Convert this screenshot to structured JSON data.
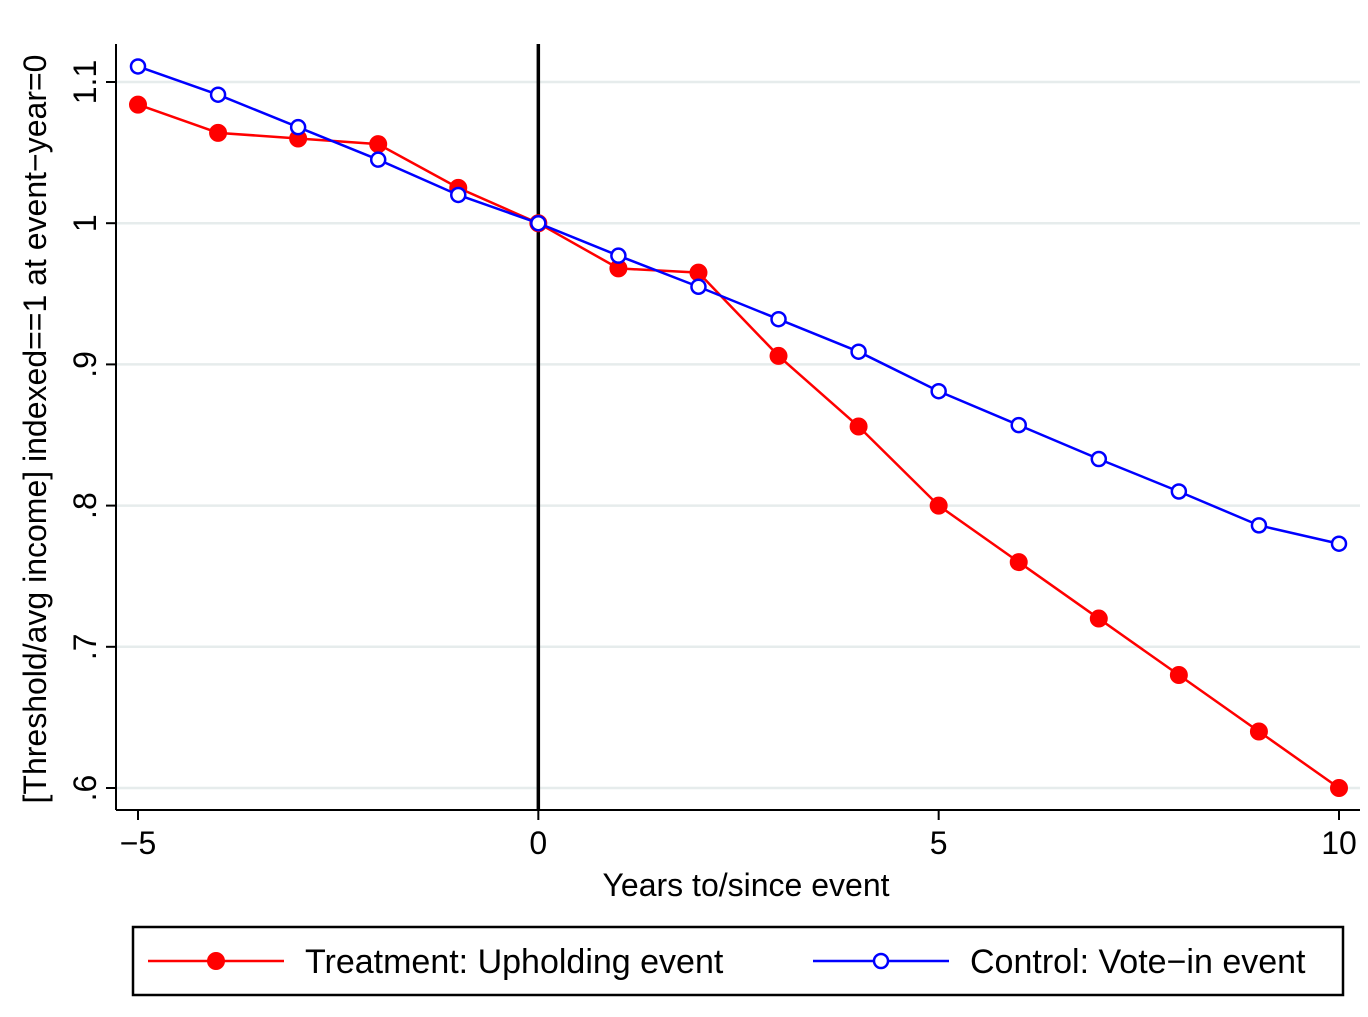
{
  "chart_data": {
    "type": "line",
    "title": "",
    "xlabel": "Years to/since event",
    "ylabel": "[Threshold/avg income] indexed==1 at event−year=0",
    "xlim": [
      -5,
      10
    ],
    "ylim": [
      0.6,
      1.1
    ],
    "xticks": [
      -5,
      0,
      5,
      10
    ],
    "xtick_labels": [
      "−5",
      "0",
      "5",
      "10"
    ],
    "yticks": [
      0.6,
      0.7,
      0.8,
      0.9,
      1.0,
      1.1
    ],
    "ytick_labels": [
      ".6",
      ".7",
      ".8",
      ".9",
      "1",
      "1.1"
    ],
    "grid": "horizontal",
    "reference_line_x": 0,
    "legend_position": "bottom",
    "x": [
      -5,
      -4,
      -3,
      -2,
      -1,
      0,
      1,
      2,
      3,
      4,
      5,
      6,
      7,
      8,
      9,
      10
    ],
    "series": [
      {
        "name": "Treatment: Upholding event",
        "color": "#ff0000",
        "marker": "filled-circle",
        "values": [
          1.084,
          1.064,
          1.06,
          1.056,
          1.025,
          1.0,
          0.968,
          0.965,
          0.906,
          0.856,
          0.8,
          0.76,
          0.72,
          0.68,
          0.64,
          0.6
        ]
      },
      {
        "name": "Control: Vote−in event",
        "color": "#0000ff",
        "marker": "hollow-circle",
        "values": [
          1.111,
          1.091,
          1.068,
          1.045,
          1.02,
          1.0,
          0.977,
          0.955,
          0.932,
          0.909,
          0.881,
          0.857,
          0.833,
          0.81,
          0.786,
          0.773
        ]
      }
    ]
  }
}
